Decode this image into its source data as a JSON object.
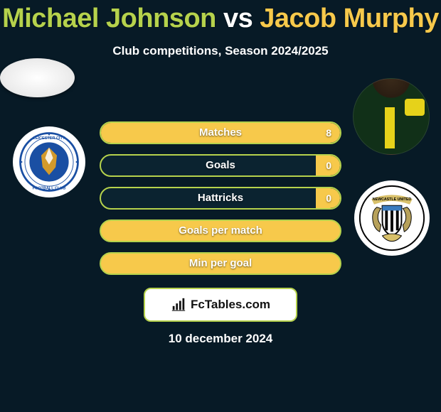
{
  "title": {
    "player1": "Michael Johnson",
    "vs": "vs",
    "player2": "Jacob Murphy"
  },
  "subtitle": "Club competitions, Season 2024/2025",
  "colors": {
    "background": "#071a26",
    "player1": "#b6d24c",
    "player2": "#f7c94b",
    "bar_border": "#b6d24c",
    "bar_fill_right": "#f7c94b",
    "text": "#ffffff"
  },
  "stats": [
    {
      "label": "Matches",
      "right_value": "8",
      "right_fill_pct": 100,
      "full_yellow": false
    },
    {
      "label": "Goals",
      "right_value": "0",
      "right_fill_pct": 10,
      "full_yellow": false
    },
    {
      "label": "Hattricks",
      "right_value": "0",
      "right_fill_pct": 10,
      "full_yellow": false
    },
    {
      "label": "Goals per match",
      "right_value": "",
      "right_fill_pct": 100,
      "full_yellow": true
    },
    {
      "label": "Min per goal",
      "right_value": "",
      "right_fill_pct": 100,
      "full_yellow": true
    }
  ],
  "left_club": {
    "name": "Leicester City Football Club",
    "crest_primary": "#1a4fa3",
    "crest_secondary": "#ffffff",
    "crest_accent": "#d39a2b"
  },
  "right_club": {
    "name": "Newcastle United",
    "crest_primary": "#000000",
    "crest_secondary": "#ffffff",
    "crest_accent": "#3a7bbf"
  },
  "brand": {
    "text": "FcTables.com"
  },
  "date": "10 december 2024"
}
